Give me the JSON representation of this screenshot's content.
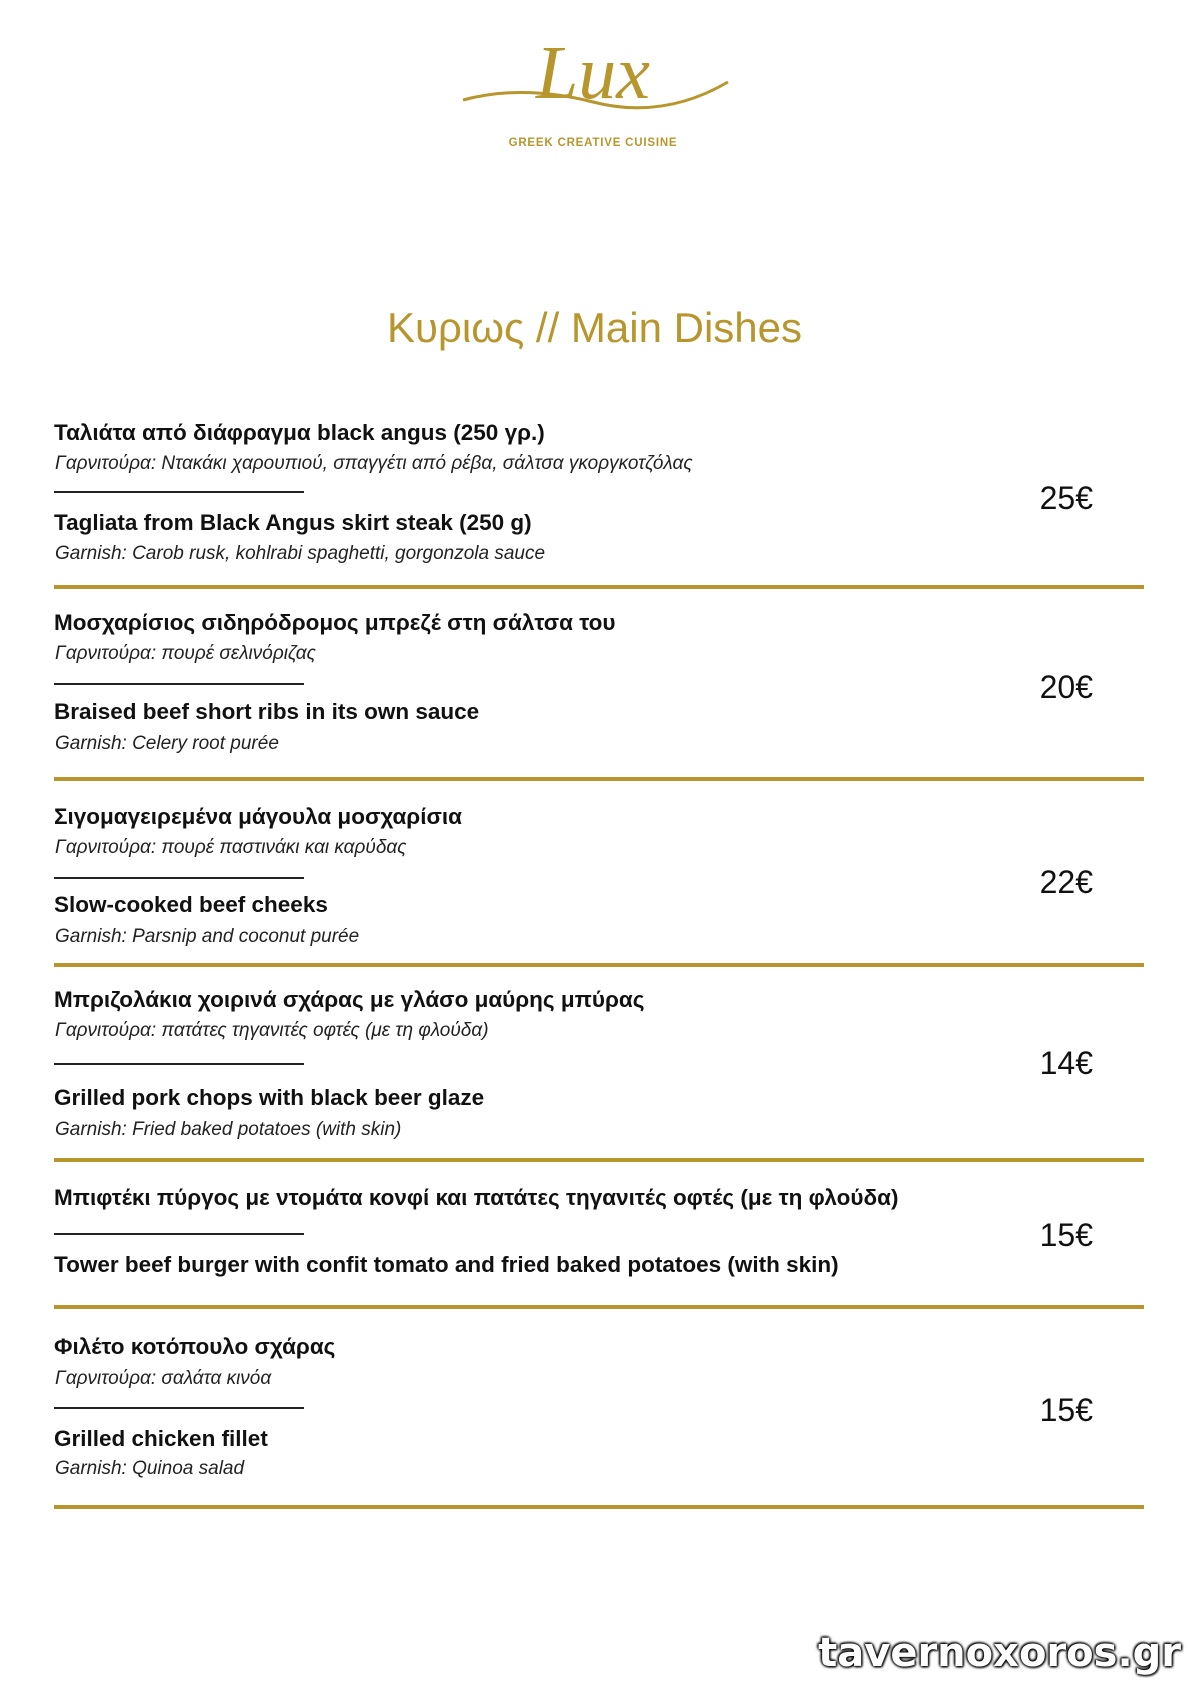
{
  "logo": {
    "script_text": "Lux",
    "tagline": "GREEK CREATIVE CUISINE",
    "color": "#b8962e"
  },
  "heading": "Κυριως // Main Dishes",
  "items": [
    {
      "title_gr": "Ταλιάτα από διάφραγμα black angus (250 γρ.)",
      "garnish_gr": "Γαρνιτούρα: Ντακάκι χαρουπιού, σπαγγέτι από ρέβα, σάλτσα γκοργκοτζόλας",
      "title_en": "Tagliata from Black Angus skirt steak (250 g)",
      "garnish_en": "Garnish: Carob rusk, kohlrabi spaghetti, gorgonzola sauce",
      "price": "25€"
    },
    {
      "title_gr": "Μοσχαρίσιος σιδηρόδρομος μπρεζέ στη σάλτσα του",
      "garnish_gr": "Γαρνιτούρα: πουρέ σελινόριζας",
      "title_en": "Braised beef short ribs in its own sauce",
      "garnish_en": "Garnish: Celery root purée",
      "price": "20€"
    },
    {
      "title_gr": "Σιγομαγειρεμένα μάγουλα μοσχαρίσια",
      "garnish_gr": "Γαρνιτούρα: πουρέ παστινάκι και καρύδας",
      "title_en": "Slow-cooked beef cheeks",
      "garnish_en": "Garnish: Parsnip and coconut purée",
      "price": "22€"
    },
    {
      "title_gr": "Μπριζολάκια χοιρινά σχάρας με γλάσο μαύρης μπύρας",
      "garnish_gr": "Γαρνιτούρα: πατάτες τηγανιτές οφτές (με τη φλούδα)",
      "title_en": "Grilled pork chops with black beer glaze",
      "garnish_en": "Garnish: Fried baked potatoes (with skin)",
      "price": "14€"
    },
    {
      "title_gr": "Μπιφτέκι πύργος με ντομάτα κονφί και πατάτες τηγανιτές οφτές (με τη φλούδα)",
      "title_en": "Tower beef burger with confit tomato and fried baked potatoes (with skin)",
      "price": "15€"
    },
    {
      "title_gr": "Φιλέτο κοτόπουλο σχάρας",
      "garnish_gr": "Γαρνιτούρα: σαλάτα κινόα",
      "title_en": "Grilled chicken fillet",
      "garnish_en": "Garnish: Quinoa salad",
      "price": "15€"
    }
  ],
  "watermark": "tavernoxoros.gr"
}
